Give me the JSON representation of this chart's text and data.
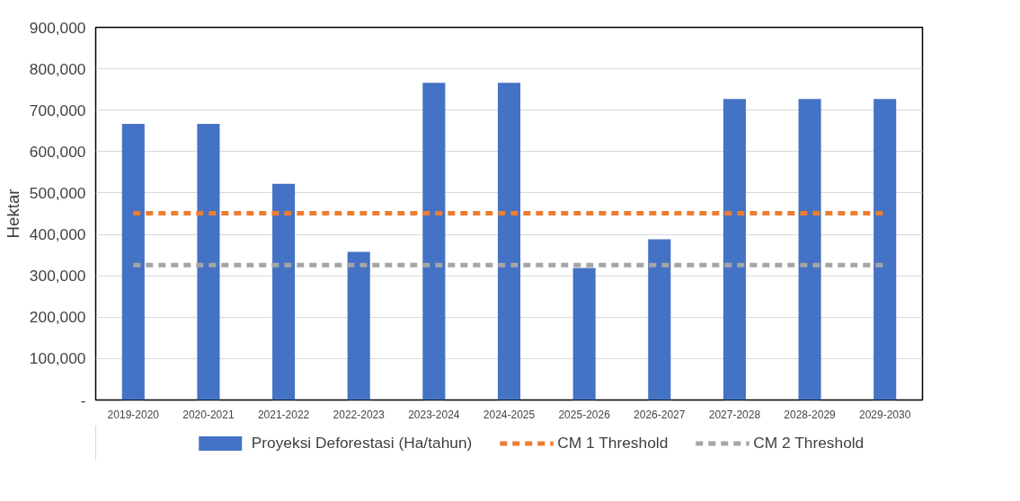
{
  "chart_data": {
    "type": "bar",
    "ylabel": "Hektar",
    "categories": [
      "2019-2020",
      "2020-2021",
      "2021-2022",
      "2022-2023",
      "2023-2024",
      "2024-2025",
      "2025-2026",
      "2026-2027",
      "2027-2028",
      "2028-2029",
      "2029-2030"
    ],
    "series": [
      {
        "name": "Proyeksi Deforestasi (Ha/tahun)",
        "color": "#4472c4",
        "values": [
          667000,
          667000,
          522000,
          358000,
          766000,
          766000,
          319000,
          388000,
          727000,
          727000,
          727000
        ]
      },
      {
        "name": "CM 1 Threshold",
        "color": "#ed7d31",
        "type": "line",
        "line_style": "dashed",
        "values": [
          451000,
          451000,
          451000,
          451000,
          451000,
          451000,
          451000,
          451000,
          451000,
          451000,
          451000
        ]
      },
      {
        "name": "CM 2 Threshold",
        "color": "#a5a5a5",
        "type": "line",
        "line_style": "dashed",
        "values": [
          326000,
          326000,
          326000,
          326000,
          326000,
          326000,
          326000,
          326000,
          326000,
          326000,
          326000
        ]
      }
    ],
    "ylim": [
      0,
      900000
    ],
    "yticks": [
      {
        "value": 0,
        "label": "-"
      },
      {
        "value": 100000,
        "label": "100,000"
      },
      {
        "value": 200000,
        "label": "200,000"
      },
      {
        "value": 300000,
        "label": "300,000"
      },
      {
        "value": 400000,
        "label": "400,000"
      },
      {
        "value": 500000,
        "label": "500,000"
      },
      {
        "value": 600000,
        "label": "600,000"
      },
      {
        "value": 700000,
        "label": "700,000"
      },
      {
        "value": 800000,
        "label": "800,000"
      },
      {
        "value": 900000,
        "label": "900,000"
      }
    ],
    "grid": "y",
    "legend": "bottom"
  }
}
